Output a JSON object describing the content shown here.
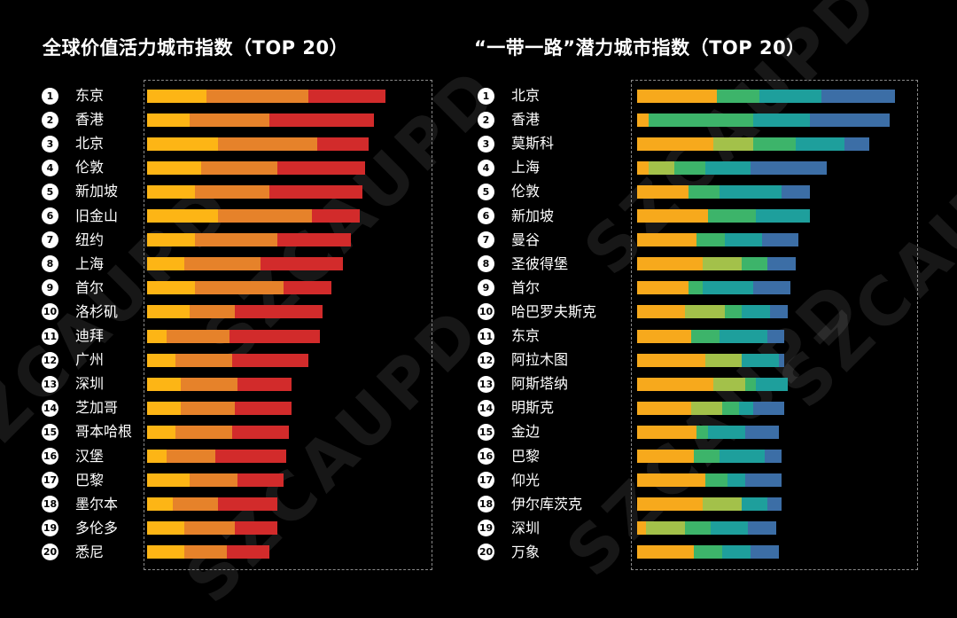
{
  "watermark": "SZCAUPD",
  "colors": {
    "left_segments": [
      "#fdb515",
      "#e6822a",
      "#d22b2b"
    ],
    "right_segments": [
      "#f7a91c",
      "#a3c14a",
      "#3db46a",
      "#1e9f9c",
      "#3c6ea6"
    ]
  },
  "chart_data": [
    {
      "type": "bar",
      "orientation": "horizontal",
      "stacked": true,
      "title": "全球价值活力城市指数（TOP 20）",
      "ranks": [
        "1",
        "2",
        "3",
        "4",
        "5",
        "6",
        "7",
        "8",
        "9",
        "10",
        "11",
        "12",
        "13",
        "14",
        "15",
        "16",
        "17",
        "18",
        "19",
        "20"
      ],
      "categories": [
        "东京",
        "香港",
        "北京",
        "伦敦",
        "新加坡",
        "旧金山",
        "纽约",
        "上海",
        "首尔",
        "洛杉矶",
        "迪拜",
        "广州",
        "深圳",
        "芝加哥",
        "哥本哈根",
        "汉堡",
        "巴黎",
        "墨尔本",
        "多伦多",
        "悉尼"
      ],
      "segments": [
        [
          21,
          36,
          27
        ],
        [
          15,
          28,
          37
        ],
        [
          25,
          35,
          18
        ],
        [
          19,
          27,
          31
        ],
        [
          17,
          26,
          33
        ],
        [
          25,
          33,
          17
        ],
        [
          17,
          29,
          26
        ],
        [
          13,
          27,
          29
        ],
        [
          17,
          31,
          17
        ],
        [
          15,
          16,
          31
        ],
        [
          7,
          22,
          32
        ],
        [
          10,
          20,
          27
        ],
        [
          12,
          20,
          19
        ],
        [
          12,
          19,
          20
        ],
        [
          10,
          20,
          20
        ],
        [
          7,
          17,
          25
        ],
        [
          15,
          17,
          16
        ],
        [
          9,
          16,
          21
        ],
        [
          13,
          18,
          15
        ],
        [
          13,
          15,
          15
        ]
      ]
    },
    {
      "type": "bar",
      "orientation": "horizontal",
      "stacked": true,
      "title": "“一带一路”潜力城市指数（TOP 20）",
      "ranks": [
        "1",
        "2",
        "3",
        "4",
        "5",
        "6",
        "7",
        "8",
        "9",
        "10",
        "11",
        "12",
        "13",
        "14",
        "15",
        "16",
        "17",
        "18",
        "19",
        "20"
      ],
      "categories": [
        "北京",
        "香港",
        "莫斯科",
        "上海",
        "伦敦",
        "新加坡",
        "曼谷",
        "圣彼得堡",
        "首尔",
        "哈巴罗夫斯克",
        "东京",
        "阿拉木图",
        "阿斯塔纳",
        "明斯克",
        "金边",
        "巴黎",
        "仰光",
        "伊尔库茨克",
        "深圳",
        "万象"
      ],
      "segments": [
        [
          28,
          0,
          15,
          22,
          26
        ],
        [
          4,
          0,
          37,
          20,
          28
        ],
        [
          27,
          14,
          15,
          17,
          9
        ],
        [
          4,
          9,
          11,
          16,
          27
        ],
        [
          18,
          0,
          11,
          22,
          10
        ],
        [
          25,
          0,
          17,
          19,
          0
        ],
        [
          21,
          0,
          10,
          13,
          13
        ],
        [
          23,
          14,
          9,
          0,
          10
        ],
        [
          18,
          0,
          5,
          18,
          13
        ],
        [
          17,
          14,
          6,
          10,
          6
        ],
        [
          19,
          0,
          10,
          17,
          6
        ],
        [
          24,
          13,
          0,
          13,
          2
        ],
        [
          27,
          11,
          4,
          11,
          0
        ],
        [
          19,
          11,
          6,
          5,
          11
        ],
        [
          21,
          0,
          4,
          13,
          12
        ],
        [
          20,
          0,
          9,
          16,
          6
        ],
        [
          24,
          0,
          8,
          6,
          13
        ],
        [
          23,
          14,
          0,
          9,
          5
        ],
        [
          3,
          14,
          9,
          13,
          10
        ],
        [
          20,
          0,
          10,
          10,
          10
        ]
      ]
    }
  ]
}
